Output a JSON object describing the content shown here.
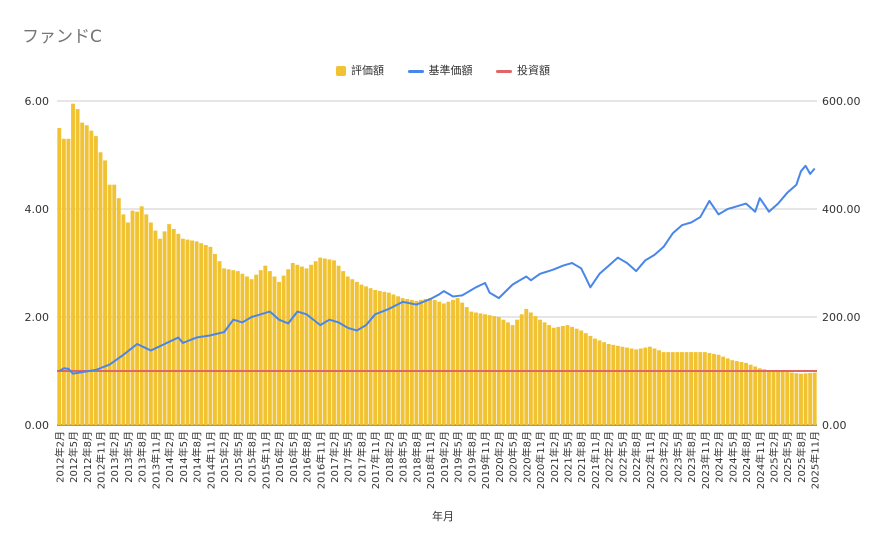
{
  "chart_data": {
    "type": "bar+line",
    "title": "ファンドC",
    "xlabel": "年月",
    "ylabel_left": "",
    "ylabel_right": "",
    "ylim_left": [
      0,
      6
    ],
    "ylim_right": [
      0,
      600
    ],
    "yticks_left": [
      "0.00",
      "2.00",
      "4.00",
      "6.00"
    ],
    "yticks_right": [
      "0.00",
      "200.00",
      "400.00",
      "600.00"
    ],
    "grid": true,
    "legend_position": "top-center",
    "x_start": {
      "year": 2012,
      "month": 2
    },
    "x_count": 166,
    "x_tick_labels": [
      "2012年2月",
      "2012年5月",
      "2012年8月",
      "2012年11月",
      "2013年2月",
      "2013年5月",
      "2013年8月",
      "2013年11月",
      "2014年2月",
      "2014年5月",
      "2014年8月",
      "2014年11月",
      "2015年2月",
      "2015年5月",
      "2015年8月",
      "2015年11月",
      "2016年2月",
      "2016年5月",
      "2016年8月",
      "2016年11月",
      "2017年2月",
      "2017年5月",
      "2017年8月",
      "2017年11月",
      "2018年2月",
      "2018年5月",
      "2018年8月",
      "2018年11月",
      "2019年2月",
      "2019年5月",
      "2019年8月",
      "2019年11月",
      "2020年2月",
      "2020年5月",
      "2020年8月",
      "2020年11月",
      "2021年2月",
      "2021年5月",
      "2021年8月",
      "2021年11月",
      "2022年2月",
      "2022年5月",
      "2022年8月",
      "2022年11月",
      "2023年2月",
      "2023年5月",
      "2023年8月",
      "2023年11月",
      "2024年2月",
      "2024年5月",
      "2024年8月",
      "2024年11月",
      "2025年2月",
      "2025年5月",
      "2025年8月",
      "2025年11月"
    ],
    "series": [
      {
        "name": "評価額",
        "type": "bar",
        "axis": "left",
        "color": "#F1C232",
        "anchors": [
          [
            0,
            5.5
          ],
          [
            1,
            5.3
          ],
          [
            2,
            5.3
          ],
          [
            3,
            5.95
          ],
          [
            4,
            5.85
          ],
          [
            5,
            5.6
          ],
          [
            6,
            5.55
          ],
          [
            7,
            5.45
          ],
          [
            8,
            5.35
          ],
          [
            9,
            5.05
          ],
          [
            10,
            4.9
          ],
          [
            11,
            4.45
          ],
          [
            12,
            4.45
          ],
          [
            13,
            4.2
          ],
          [
            14,
            3.9
          ],
          [
            15,
            3.75
          ],
          [
            16,
            3.97
          ],
          [
            17,
            3.95
          ],
          [
            18,
            4.05
          ],
          [
            19,
            3.9
          ],
          [
            20,
            3.75
          ],
          [
            21,
            3.6
          ],
          [
            22,
            3.45
          ],
          [
            24,
            3.72
          ],
          [
            27,
            3.45
          ],
          [
            30,
            3.4
          ],
          [
            33,
            3.3
          ],
          [
            36,
            2.9
          ],
          [
            39,
            2.85
          ],
          [
            42,
            2.7
          ],
          [
            45,
            2.95
          ],
          [
            48,
            2.65
          ],
          [
            51,
            3.0
          ],
          [
            54,
            2.9
          ],
          [
            57,
            3.1
          ],
          [
            60,
            3.05
          ],
          [
            63,
            2.75
          ],
          [
            66,
            2.6
          ],
          [
            69,
            2.5
          ],
          [
            72,
            2.45
          ],
          [
            75,
            2.35
          ],
          [
            78,
            2.3
          ],
          [
            81,
            2.35
          ],
          [
            84,
            2.25
          ],
          [
            87,
            2.35
          ],
          [
            90,
            2.1
          ],
          [
            93,
            2.05
          ],
          [
            96,
            2.0
          ],
          [
            99,
            1.85
          ],
          [
            102,
            2.15
          ],
          [
            105,
            1.95
          ],
          [
            108,
            1.8
          ],
          [
            111,
            1.85
          ],
          [
            114,
            1.75
          ],
          [
            117,
            1.6
          ],
          [
            120,
            1.5
          ],
          [
            123,
            1.45
          ],
          [
            126,
            1.4
          ],
          [
            129,
            1.45
          ],
          [
            132,
            1.35
          ],
          [
            135,
            1.35
          ],
          [
            138,
            1.35
          ],
          [
            141,
            1.35
          ],
          [
            144,
            1.3
          ],
          [
            147,
            1.2
          ],
          [
            150,
            1.15
          ],
          [
            153,
            1.05
          ],
          [
            156,
            1.0
          ],
          [
            159,
            0.98
          ],
          [
            162,
            0.95
          ],
          [
            165,
            0.97
          ]
        ]
      },
      {
        "name": "基準価額",
        "type": "line",
        "axis": "right",
        "color": "#4A86E8",
        "anchors": [
          [
            0,
            100
          ],
          [
            1,
            105
          ],
          [
            2,
            104
          ],
          [
            3,
            95
          ],
          [
            5,
            98
          ],
          [
            8,
            102
          ],
          [
            11,
            112
          ],
          [
            14,
            130
          ],
          [
            17,
            150
          ],
          [
            20,
            138
          ],
          [
            23,
            150
          ],
          [
            26,
            162
          ],
          [
            27,
            152
          ],
          [
            30,
            162
          ],
          [
            33,
            166
          ],
          [
            36,
            172
          ],
          [
            38,
            195
          ],
          [
            40,
            190
          ],
          [
            42,
            200
          ],
          [
            44,
            205
          ],
          [
            46,
            210
          ],
          [
            48,
            195
          ],
          [
            50,
            188
          ],
          [
            52,
            210
          ],
          [
            54,
            205
          ],
          [
            57,
            185
          ],
          [
            59,
            195
          ],
          [
            61,
            190
          ],
          [
            63,
            180
          ],
          [
            65,
            175
          ],
          [
            67,
            185
          ],
          [
            69,
            205
          ],
          [
            72,
            215
          ],
          [
            75,
            228
          ],
          [
            78,
            223
          ],
          [
            81,
            233
          ],
          [
            83,
            242
          ],
          [
            84,
            248
          ],
          [
            86,
            238
          ],
          [
            88,
            240
          ],
          [
            91,
            255
          ],
          [
            93,
            263
          ],
          [
            94,
            245
          ],
          [
            96,
            235
          ],
          [
            99,
            260
          ],
          [
            102,
            275
          ],
          [
            103,
            268
          ],
          [
            105,
            280
          ],
          [
            108,
            288
          ],
          [
            110,
            295
          ],
          [
            112,
            300
          ],
          [
            114,
            290
          ],
          [
            116,
            255
          ],
          [
            118,
            280
          ],
          [
            120,
            295
          ],
          [
            122,
            310
          ],
          [
            124,
            300
          ],
          [
            126,
            285
          ],
          [
            128,
            305
          ],
          [
            130,
            315
          ],
          [
            132,
            330
          ],
          [
            134,
            355
          ],
          [
            136,
            370
          ],
          [
            138,
            375
          ],
          [
            140,
            385
          ],
          [
            142,
            415
          ],
          [
            144,
            390
          ],
          [
            146,
            400
          ],
          [
            148,
            405
          ],
          [
            150,
            410
          ],
          [
            152,
            395
          ],
          [
            153,
            420
          ],
          [
            154,
            408
          ],
          [
            155,
            395
          ],
          [
            157,
            410
          ],
          [
            159,
            430
          ],
          [
            161,
            445
          ],
          [
            162,
            470
          ],
          [
            163,
            480
          ],
          [
            164,
            465
          ],
          [
            165,
            475
          ]
        ]
      },
      {
        "name": "投資額",
        "type": "line",
        "axis": "right",
        "color": "#E06666",
        "value": 100
      }
    ]
  }
}
